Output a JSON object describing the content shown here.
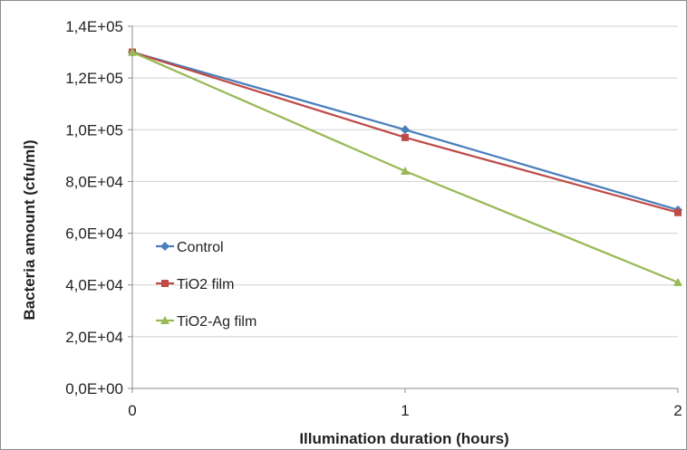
{
  "chart_data": {
    "type": "line",
    "xlabel": "Illumination duration (hours)",
    "ylabel": "Bacteria amount (cfu/ml)",
    "x": [
      0,
      1,
      2
    ],
    "x_tick_labels": [
      "0",
      "1",
      "2"
    ],
    "ylim": [
      0,
      140000
    ],
    "y_ticks": [
      0,
      20000,
      40000,
      60000,
      80000,
      100000,
      120000,
      140000
    ],
    "y_tick_labels": [
      "0,0E+00",
      "2,0E+04",
      "4,0E+04",
      "6,0E+04",
      "8,0E+04",
      "1,0E+05",
      "1,2E+05",
      "1,4E+05"
    ],
    "grid": "horizontal",
    "legend": "left",
    "series": [
      {
        "name": "Control",
        "values": [
          130000,
          100000,
          69000
        ],
        "color": "#4a7ebb",
        "marker": "diamond"
      },
      {
        "name": "TiO2 film",
        "values": [
          130000,
          97000,
          68000
        ],
        "color": "#be4b48",
        "marker": "square"
      },
      {
        "name": "TiO2-Ag film",
        "values": [
          130000,
          84000,
          41000
        ],
        "color": "#98b954",
        "marker": "triangle"
      }
    ]
  }
}
